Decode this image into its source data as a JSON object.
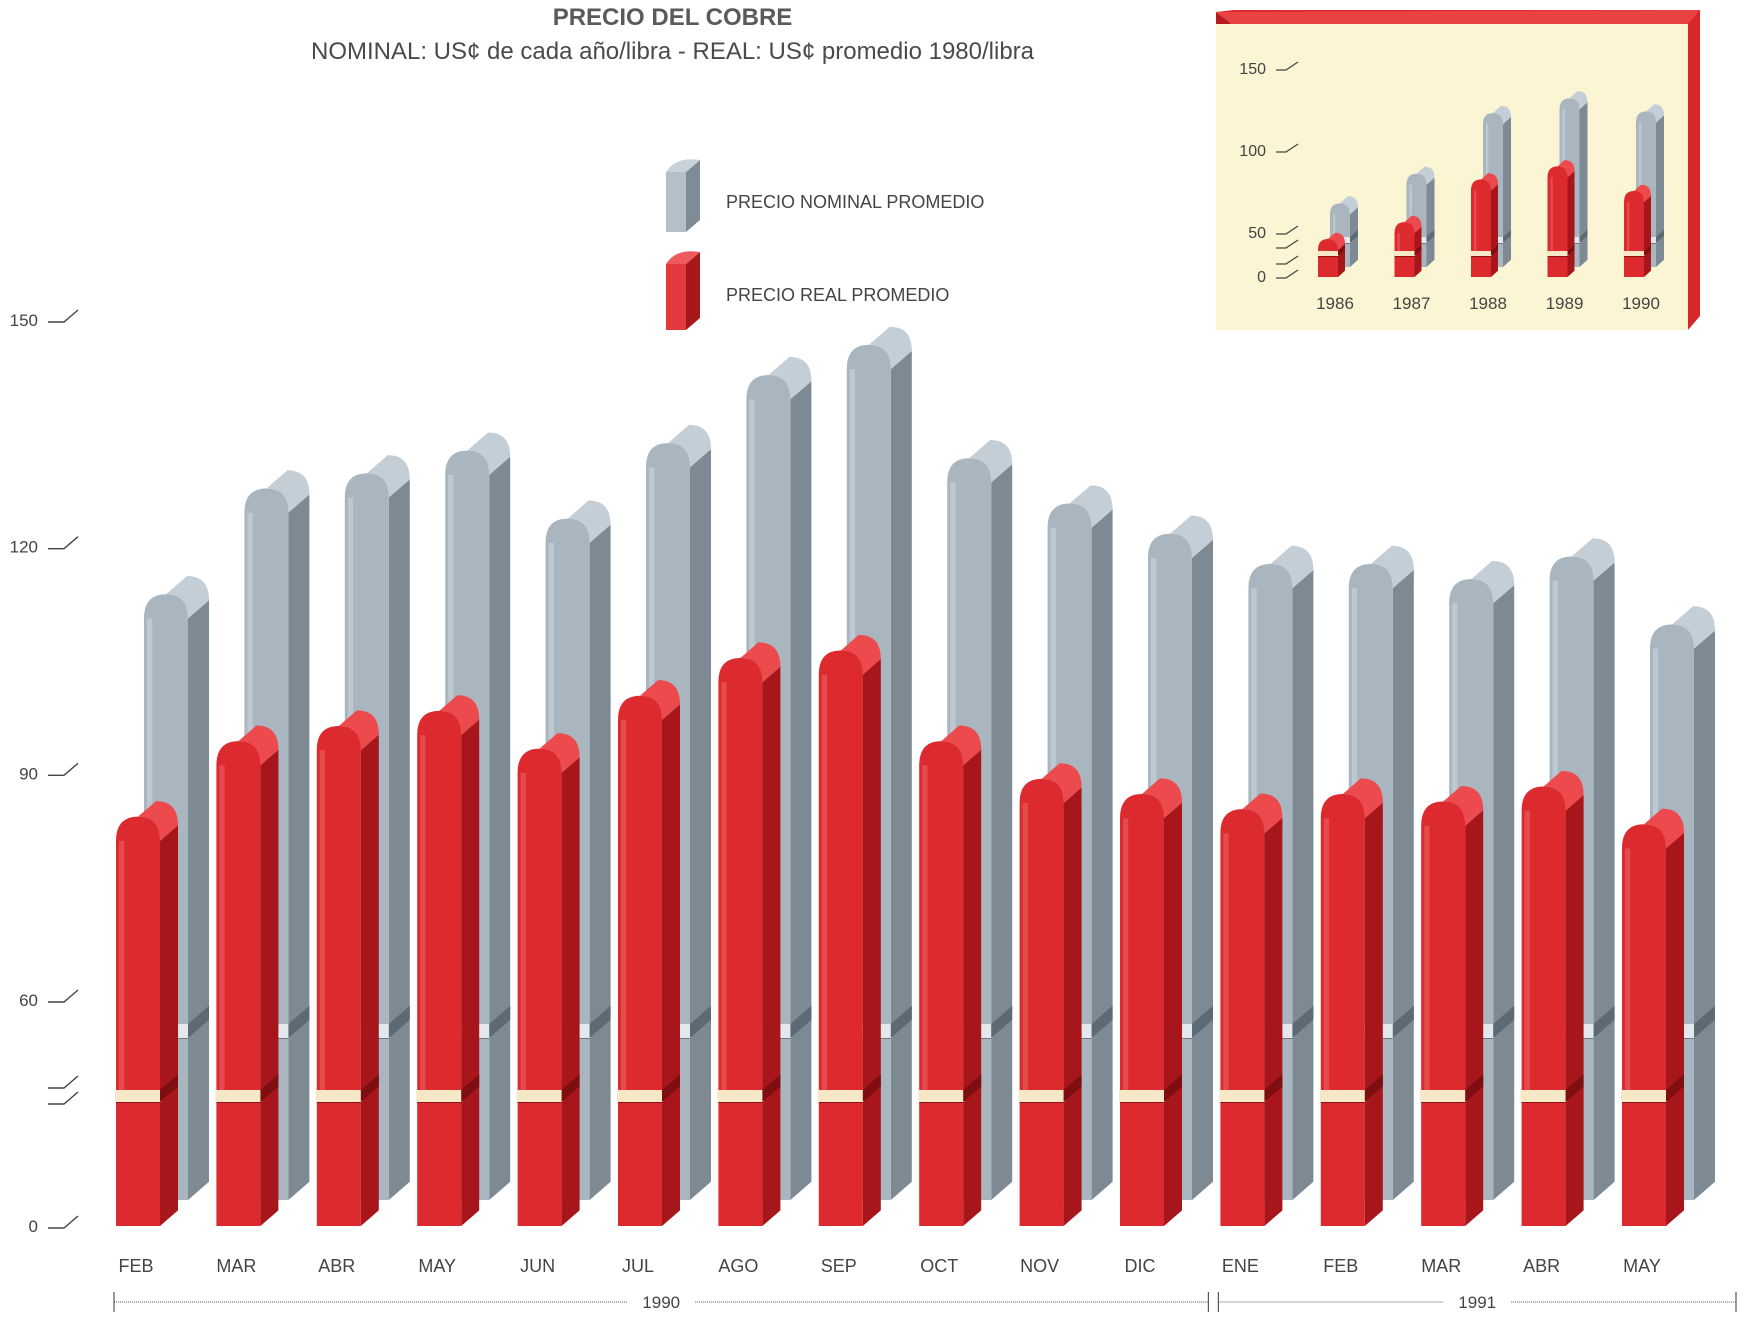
{
  "title": "PRECIO DEL COBRE",
  "subtitle": "NOMINAL: US¢ de cada año/libra - REAL: US¢ promedio 1980/libra",
  "legend": {
    "nominal": "PRECIO NOMINAL PROMEDIO",
    "real": "PRECIO REAL PROMEDIO"
  },
  "colors": {
    "nominal": "#9eaab4",
    "real": "#d8272b",
    "inset_background": "#fbf5d4",
    "inset_frame": "#d8272b"
  },
  "chart_data": [
    {
      "type": "bar",
      "title": "PRECIO DEL COBRE",
      "categories": [
        "FEB",
        "MAR",
        "ABR",
        "MAY",
        "JUN",
        "JUL",
        "AGO",
        "SEP",
        "OCT",
        "NOV",
        "DIC",
        "ENE",
        "FEB",
        "MAR",
        "ABR",
        "MAY"
      ],
      "groups": [
        {
          "label": "1990",
          "from": 0,
          "to": 10
        },
        {
          "label": "1991",
          "from": 11,
          "to": 15
        }
      ],
      "series": [
        {
          "name": "PRECIO NOMINAL PROMEDIO",
          "values": [
            110,
            124,
            126,
            129,
            120,
            130,
            139,
            143,
            128,
            122,
            118,
            114,
            114,
            112,
            115,
            106
          ]
        },
        {
          "name": "PRECIO REAL PROMEDIO",
          "values": [
            84,
            94,
            96,
            98,
            93,
            100,
            105,
            106,
            94,
            89,
            87,
            85,
            87,
            86,
            88,
            83
          ]
        }
      ],
      "yticks": [
        0,
        60,
        90,
        120,
        150
      ],
      "ylim": [
        0,
        150
      ],
      "axis_break": true,
      "legend_position": "top-center",
      "grid": false
    },
    {
      "type": "bar",
      "categories": [
        "1986",
        "1987",
        "1988",
        "1989",
        "1990"
      ],
      "series": [
        {
          "name": "PRECIO NOMINAL PROMEDIO",
          "values": [
            62,
            80,
            117,
            126,
            118
          ]
        },
        {
          "name": "PRECIO REAL PROMEDIO",
          "values": [
            42,
            56,
            82,
            90,
            75
          ]
        }
      ],
      "yticks": [
        0,
        50,
        100,
        150
      ],
      "ylim": [
        0,
        150
      ],
      "axis_break": true,
      "legend_position": "none",
      "grid": false,
      "position": "top-right inset"
    }
  ]
}
